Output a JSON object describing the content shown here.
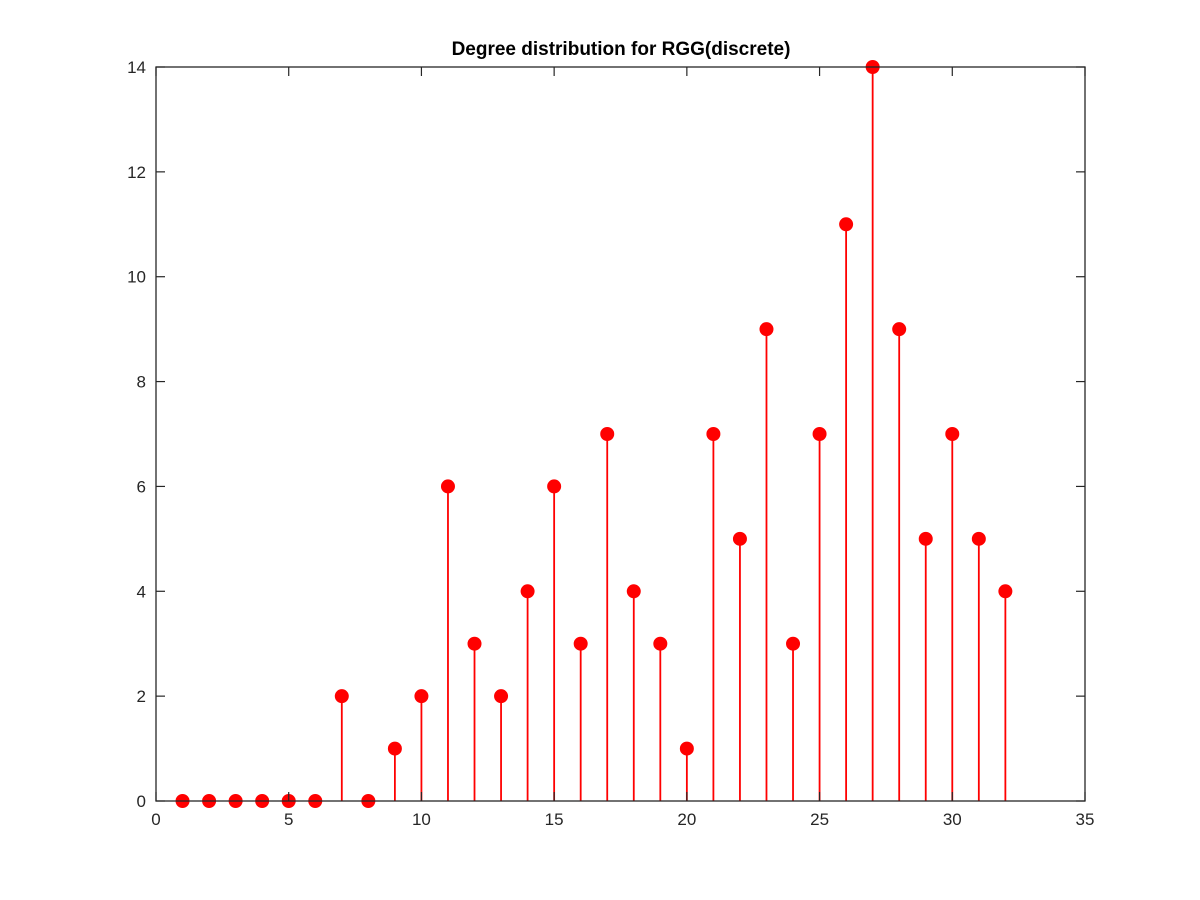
{
  "chart_data": {
    "type": "stem",
    "title": "Degree distribution for RGG(discrete)",
    "xlabel": "",
    "ylabel": "",
    "xlim": [
      0,
      35
    ],
    "ylim": [
      0,
      14
    ],
    "x_ticks": [
      0,
      5,
      10,
      15,
      20,
      25,
      30,
      35
    ],
    "y_ticks": [
      0,
      2,
      4,
      6,
      8,
      10,
      12,
      14
    ],
    "x": [
      1,
      2,
      3,
      4,
      5,
      6,
      7,
      8,
      9,
      10,
      11,
      12,
      13,
      14,
      15,
      16,
      17,
      18,
      19,
      20,
      21,
      22,
      23,
      24,
      25,
      26,
      27,
      28,
      29,
      30,
      31,
      32
    ],
    "values": [
      0,
      0,
      0,
      0,
      0,
      0,
      2,
      0,
      1,
      2,
      6,
      3,
      2,
      4,
      6,
      3,
      7,
      4,
      3,
      1,
      7,
      5,
      9,
      3,
      7,
      11,
      14,
      9,
      5,
      7,
      5,
      4
    ],
    "grid": false,
    "legend": "none",
    "series_color": "#ff0000",
    "axis_color": "#262626"
  }
}
